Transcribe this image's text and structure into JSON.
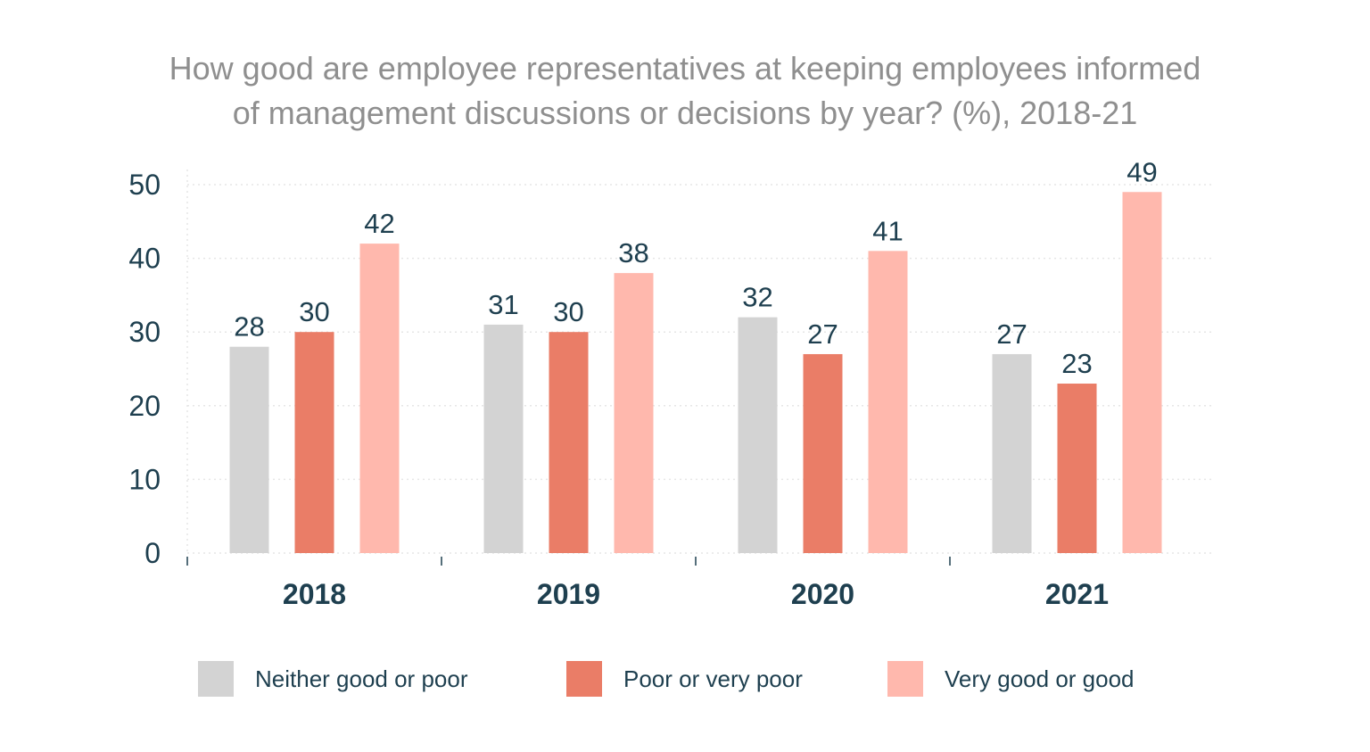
{
  "chart_data": {
    "type": "bar",
    "title_lines": [
      "How good are employee representatives at keeping employees informed",
      "of management discussions or decisions by year? (%), 2018-21"
    ],
    "categories": [
      "2018",
      "2019",
      "2020",
      "2021"
    ],
    "series": [
      {
        "name": "Neither good or poor",
        "color": "#d3d3d3",
        "values": [
          28,
          31,
          32,
          27
        ]
      },
      {
        "name": "Poor or very poor",
        "color": "#ea7d67",
        "values": [
          30,
          30,
          27,
          23
        ]
      },
      {
        "name": "Very good or good",
        "color": "#ffb8ad",
        "values": [
          42,
          38,
          41,
          49
        ]
      }
    ],
    "ylim": [
      0,
      50
    ],
    "yticks": [
      0,
      10,
      20,
      30,
      40,
      50
    ],
    "grid": true,
    "legend_position": "bottom"
  },
  "colors": {
    "text_dark": "#1e3f4f",
    "title_gray": "#8f8f8f",
    "grid": "#e6e6e6"
  }
}
